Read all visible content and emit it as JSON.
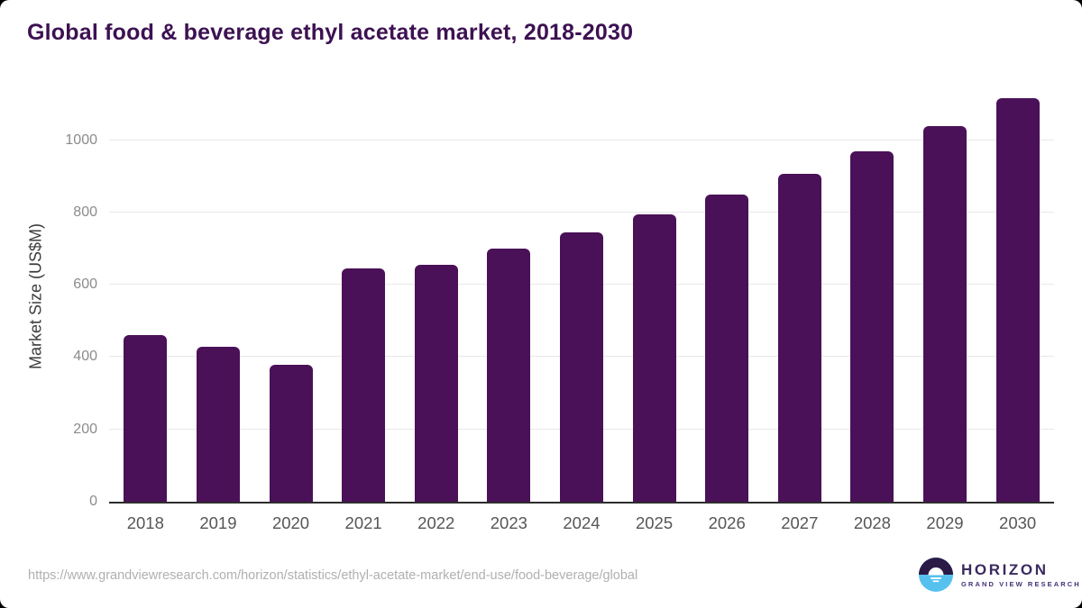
{
  "title": {
    "text": "Global food & beverage ethyl acetate market, 2018-2030",
    "color": "#3d1152"
  },
  "chart_data": {
    "type": "bar",
    "title": "Global food & beverage ethyl acetate market, 2018-2030",
    "categories": [
      "2018",
      "2019",
      "2020",
      "2021",
      "2022",
      "2023",
      "2024",
      "2025",
      "2026",
      "2027",
      "2028",
      "2029",
      "2030"
    ],
    "values": [
      460,
      428,
      380,
      645,
      655,
      700,
      745,
      795,
      850,
      908,
      970,
      1040,
      1117
    ],
    "xlabel": "",
    "ylabel": "Market Size (US$M)",
    "yticks": [
      0,
      200,
      400,
      600,
      800,
      1000
    ],
    "ylim": [
      0,
      1146
    ],
    "grid": true,
    "legend_position": "none",
    "bar_color": "#4a1158",
    "gridline_color": "#e8e8e8",
    "axis_line_color": "#2d2d2d"
  },
  "footer": {
    "source_url": "https://www.grandviewresearch.com/horizon/statistics/ethyl-acetate-market/end-use/food-beverage/global",
    "logo": {
      "name": "HORIZON",
      "subtitle": "GRAND VIEW RESEARCH",
      "circle_top_color": "#2a1a47",
      "circle_bottom_color": "#56c1ee"
    }
  }
}
